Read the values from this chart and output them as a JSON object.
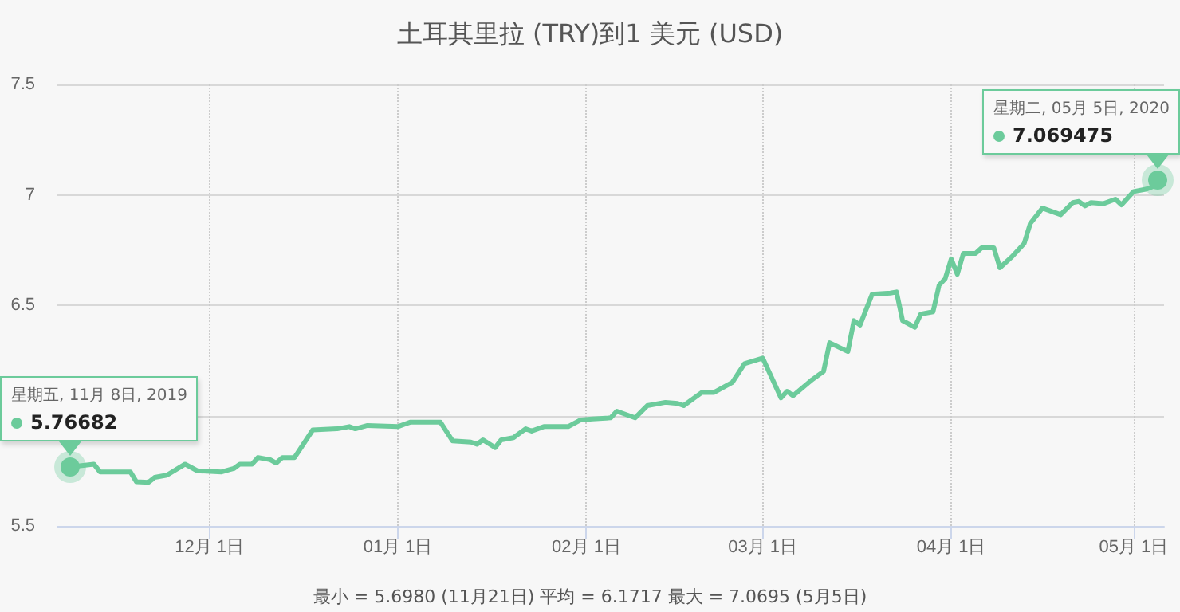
{
  "chart_data": {
    "type": "line",
    "title": "土耳其里拉 (TRY)到1 美元 (USD)",
    "series": [
      {
        "color": "#6ccb9b",
        "x": [
          "2019-11-08",
          "2019-11-12",
          "2019-11-13",
          "2019-11-18",
          "2019-11-19",
          "2019-11-21",
          "2019-11-22",
          "2019-11-24",
          "2019-11-27",
          "2019-11-29",
          "2019-12-03",
          "2019-12-05",
          "2019-12-06",
          "2019-12-08",
          "2019-12-09",
          "2019-12-11",
          "2019-12-12",
          "2019-12-13",
          "2019-12-15",
          "2019-12-18",
          "2019-12-22",
          "2019-12-24",
          "2019-12-25",
          "2019-12-27",
          "2020-01-01",
          "2020-01-03",
          "2020-01-08",
          "2020-01-10",
          "2020-01-13",
          "2020-01-14",
          "2020-01-15",
          "2020-01-17",
          "2020-01-18",
          "2020-01-20",
          "2020-01-22",
          "2020-01-23",
          "2020-01-25",
          "2020-01-29",
          "2020-01-31",
          "2020-02-02",
          "2020-02-05",
          "2020-02-06",
          "2020-02-09",
          "2020-02-11",
          "2020-02-14",
          "2020-02-16",
          "2020-02-17",
          "2020-02-20",
          "2020-02-22",
          "2020-02-25",
          "2020-02-27",
          "2020-03-01",
          "2020-03-02",
          "2020-03-04",
          "2020-03-05",
          "2020-03-06",
          "2020-03-09",
          "2020-03-11",
          "2020-03-12",
          "2020-03-15",
          "2020-03-16",
          "2020-03-17",
          "2020-03-19",
          "2020-03-22",
          "2020-03-23",
          "2020-03-24",
          "2020-03-26",
          "2020-03-27",
          "2020-03-29",
          "2020-03-30",
          "2020-03-31",
          "2020-04-01",
          "2020-04-02",
          "2020-04-03",
          "2020-04-05",
          "2020-04-06",
          "2020-04-08",
          "2020-04-09",
          "2020-04-11",
          "2020-04-13",
          "2020-04-14",
          "2020-04-16",
          "2020-04-17",
          "2020-04-19",
          "2020-04-21",
          "2020-04-22",
          "2020-04-23",
          "2020-04-24",
          "2020-04-26",
          "2020-04-28",
          "2020-04-29",
          "2020-05-01",
          "2020-05-03",
          "2020-05-04",
          "2020-05-05"
        ],
        "values": [
          5.76682,
          5.78,
          5.745,
          5.745,
          5.7,
          5.698,
          5.72,
          5.73,
          5.78,
          5.75,
          5.745,
          5.76,
          5.78,
          5.78,
          5.81,
          5.8,
          5.785,
          5.81,
          5.81,
          5.935,
          5.94,
          5.95,
          5.94,
          5.955,
          5.95,
          5.97,
          5.97,
          5.885,
          5.88,
          5.87,
          5.89,
          5.855,
          5.89,
          5.9,
          5.94,
          5.93,
          5.95,
          5.95,
          5.98,
          5.985,
          5.99,
          6.02,
          5.99,
          6.045,
          6.06,
          6.055,
          6.045,
          6.105,
          6.105,
          6.15,
          6.235,
          6.26,
          6.2,
          6.08,
          6.11,
          6.09,
          6.16,
          6.2,
          6.33,
          6.29,
          6.43,
          6.41,
          6.55,
          6.555,
          6.56,
          6.43,
          6.4,
          6.46,
          6.47,
          6.59,
          6.62,
          6.71,
          6.64,
          6.735,
          6.735,
          6.76,
          6.76,
          6.67,
          6.72,
          6.78,
          6.87,
          6.94,
          6.93,
          6.91,
          6.965,
          6.97,
          6.95,
          6.965,
          6.96,
          6.98,
          6.955,
          7.015,
          7.025,
          7.035,
          7.0695
        ]
      }
    ],
    "xlim": [
      "2019-11-06",
      "2020-05-06"
    ],
    "xticks": [
      {
        "value": "2019-12-01",
        "label": "12月 1日"
      },
      {
        "value": "2020-01-01",
        "label": "01月 1日"
      },
      {
        "value": "2020-02-01",
        "label": "02月 1日"
      },
      {
        "value": "2020-03-01",
        "label": "03月 1日"
      },
      {
        "value": "2020-04-01",
        "label": "04月 1日"
      },
      {
        "value": "2020-05-01",
        "label": "05月 1日"
      }
    ],
    "ylim": [
      5.5,
      7.5
    ],
    "yticks": [
      5.5,
      {
        "value": 6,
        "label": null
      },
      6.5,
      7,
      7.5
    ],
    "grid": true,
    "marker": "none",
    "line_style": "solid",
    "annotations": [
      "星期五, 11月 8日, 2019",
      {
        "text": "5.76682",
        "x": "2019-11-08",
        "y": 5.76682
      },
      "星期二, 05月 5日, 2020",
      {
        "text": "7.069475",
        "x": "2020-05-05",
        "y": 7.0695
      },
      "最小 = 5.6980 (11月21日) 平均 = 6.1717 最大 = 7.0695 (5月5日)"
    ]
  }
}
